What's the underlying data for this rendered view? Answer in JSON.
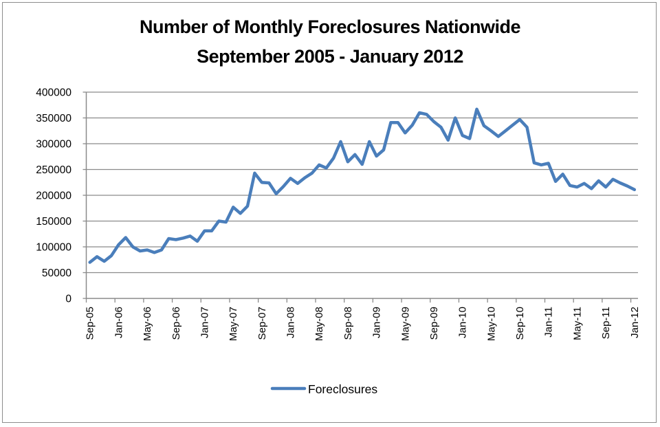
{
  "chart_data": {
    "type": "line",
    "title": "Number of Monthly Foreclosures Nationwide",
    "subtitle": "September 2005 - January 2012",
    "xlabel": "",
    "ylabel": "",
    "ylim": [
      0,
      400000
    ],
    "yticks": [
      0,
      50000,
      100000,
      150000,
      200000,
      250000,
      300000,
      350000,
      400000
    ],
    "ytick_labels": [
      "0",
      "50000",
      "100000",
      "150000",
      "200000",
      "250000",
      "300000",
      "350000",
      "400000"
    ],
    "xtick_labels": [
      "Sep-05",
      "Jan-06",
      "May-06",
      "Sep-06",
      "Jan-07",
      "May-07",
      "Sep-07",
      "Jan-08",
      "May-08",
      "Sep-08",
      "Jan-09",
      "May-09",
      "Sep-09",
      "Jan-10",
      "May-10",
      "Sep-10",
      "Jan-11",
      "May-11",
      "Sep-11",
      "Jan-12"
    ],
    "grid": "horizontal",
    "legend_position": "bottom",
    "x": [
      "Sep-05",
      "Oct-05",
      "Nov-05",
      "Dec-05",
      "Jan-06",
      "Feb-06",
      "Mar-06",
      "Apr-06",
      "May-06",
      "Jun-06",
      "Jul-06",
      "Aug-06",
      "Sep-06",
      "Oct-06",
      "Nov-06",
      "Dec-06",
      "Jan-07",
      "Feb-07",
      "Mar-07",
      "Apr-07",
      "May-07",
      "Jun-07",
      "Jul-07",
      "Aug-07",
      "Sep-07",
      "Oct-07",
      "Nov-07",
      "Dec-07",
      "Jan-08",
      "Feb-08",
      "Mar-08",
      "Apr-08",
      "May-08",
      "Jun-08",
      "Jul-08",
      "Aug-08",
      "Sep-08",
      "Oct-08",
      "Nov-08",
      "Dec-08",
      "Jan-09",
      "Feb-09",
      "Mar-09",
      "Apr-09",
      "May-09",
      "Jun-09",
      "Jul-09",
      "Aug-09",
      "Sep-09",
      "Oct-09",
      "Nov-09",
      "Dec-09",
      "Jan-10",
      "Feb-10",
      "Mar-10",
      "Apr-10",
      "May-10",
      "Jun-10",
      "Jul-10",
      "Aug-10",
      "Sep-10",
      "Oct-10",
      "Nov-10",
      "Dec-10",
      "Jan-11",
      "Feb-11",
      "Mar-11",
      "Apr-11",
      "May-11",
      "Jun-11",
      "Jul-11",
      "Aug-11",
      "Sep-11",
      "Oct-11",
      "Nov-11",
      "Dec-11",
      "Jan-12"
    ],
    "series": [
      {
        "name": "Foreclosures",
        "color": "#4a7ebb",
        "values": [
          70000,
          81000,
          72000,
          83000,
          104000,
          118000,
          100000,
          92000,
          94000,
          89000,
          94000,
          116000,
          114000,
          117000,
          121000,
          111000,
          131000,
          131000,
          150000,
          148000,
          177000,
          165000,
          179000,
          243000,
          225000,
          224000,
          203000,
          217000,
          233000,
          223000,
          234000,
          243000,
          259000,
          253000,
          272000,
          304000,
          265000,
          279000,
          260000,
          304000,
          276000,
          288000,
          341000,
          341000,
          321000,
          336000,
          360000,
          357000,
          343000,
          332000,
          307000,
          350000,
          316000,
          310000,
          367000,
          335000,
          325000,
          314000,
          325000,
          336000,
          347000,
          332000,
          263000,
          259000,
          262000,
          227000,
          241000,
          219000,
          216000,
          223000,
          213000,
          228000,
          216000,
          231000,
          224000,
          218000,
          211000
        ]
      }
    ]
  },
  "legend": {
    "label": "Foreclosures"
  }
}
